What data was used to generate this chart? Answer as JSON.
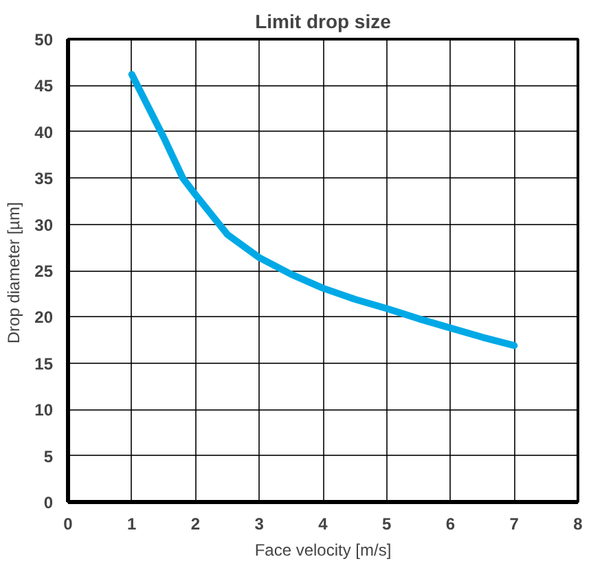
{
  "chart_data": {
    "type": "line",
    "title": "Limit drop size",
    "xlabel": "Face velocity [m/s]",
    "ylabel": "Drop diameter  [µm]",
    "x": [
      1,
      1.5,
      1.8,
      2,
      2.5,
      3,
      3.5,
      4,
      4.5,
      5,
      5.5,
      6,
      6.5,
      7
    ],
    "series": [
      {
        "color": "#00a9e6",
        "values": [
          46.2,
          39.4,
          35.0,
          33.2,
          28.9,
          26.4,
          24.6,
          23.1,
          21.9,
          20.9,
          19.8,
          18.8,
          17.8,
          16.9
        ]
      }
    ],
    "xlim": [
      0,
      8
    ],
    "ylim": [
      0,
      50
    ],
    "xticks": [
      0,
      1,
      2,
      3,
      4,
      5,
      6,
      7,
      8
    ],
    "yticks": [
      0,
      5,
      10,
      15,
      20,
      25,
      30,
      35,
      40,
      45,
      50
    ],
    "grid": true,
    "marker": "none",
    "line_style": "solid"
  }
}
